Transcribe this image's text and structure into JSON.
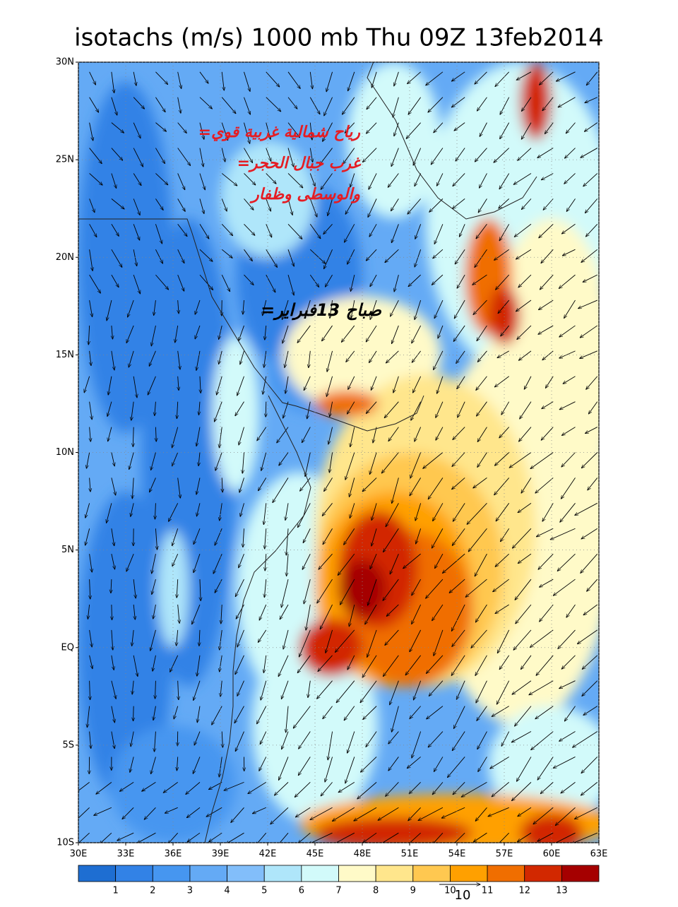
{
  "title": "isotachs (m/s) 1000 mb Thu 09Z 13feb2014",
  "map": {
    "lonlim": [
      30,
      63
    ],
    "latlim": [
      -10,
      30
    ],
    "lonticks": [
      {
        "value": 30,
        "label": "30E"
      },
      {
        "value": 33,
        "label": "33E"
      },
      {
        "value": 36,
        "label": "36E"
      },
      {
        "value": 39,
        "label": "39E"
      },
      {
        "value": 42,
        "label": "42E"
      },
      {
        "value": 45,
        "label": "45E"
      },
      {
        "value": 48,
        "label": "48E"
      },
      {
        "value": 51,
        "label": "51E"
      },
      {
        "value": 54,
        "label": "54E"
      },
      {
        "value": 57,
        "label": "57E"
      },
      {
        "value": 60,
        "label": "60E"
      },
      {
        "value": 63,
        "label": "63E"
      }
    ],
    "latticks": [
      {
        "value": 30,
        "label": "30N"
      },
      {
        "value": 25,
        "label": "25N"
      },
      {
        "value": 20,
        "label": "20N"
      },
      {
        "value": 15,
        "label": "15N"
      },
      {
        "value": 10,
        "label": "10N"
      },
      {
        "value": 5,
        "label": "5N"
      },
      {
        "value": 0,
        "label": "EQ"
      },
      {
        "value": -5,
        "label": "5S"
      },
      {
        "value": -10,
        "label": "10S"
      }
    ],
    "grid": true
  },
  "annotations": [
    "رياح شمالية غربية قوي=",
    "غرب جبال الحجر=",
    "والوسطى وظفار",
    "صباح 13فبراير="
  ],
  "colorbar": {
    "levels": [
      1,
      2,
      3,
      4,
      5,
      6,
      7,
      8,
      9,
      10,
      11,
      12,
      13
    ],
    "colors": [
      "#1e6ed2",
      "#3282e6",
      "#4696f0",
      "#64aaf5",
      "#82befa",
      "#afe6fa",
      "#d2fafa",
      "#fffac8",
      "#ffe68c",
      "#ffc850",
      "#ffa000",
      "#f06e00",
      "#d22800",
      "#a50000"
    ]
  },
  "vector_reference": "10"
}
